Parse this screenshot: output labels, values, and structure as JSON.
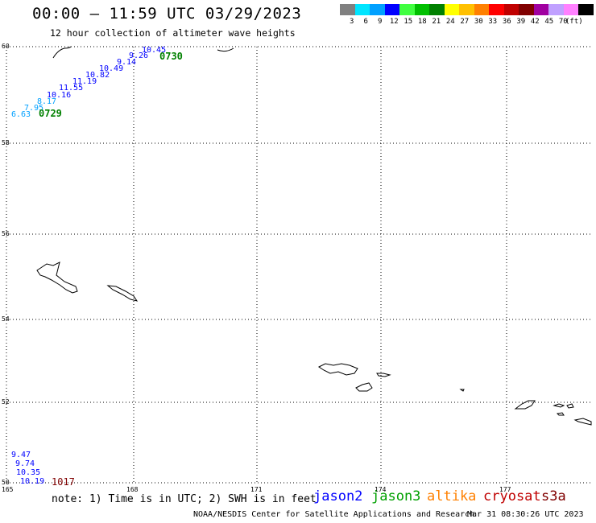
{
  "header": {
    "title": "00:00 – 11:59 UTC 03/29/2023",
    "subtitle": "12 hour collection of altimeter wave heights"
  },
  "legend": {
    "colors": [
      "#808080",
      "#00e5ff",
      "#00a0ff",
      "#0000ff",
      "#40ff40",
      "#00c000",
      "#008000",
      "#ffff00",
      "#ffc000",
      "#ff8000",
      "#ff0000",
      "#c00000",
      "#800000",
      "#a000a0",
      "#c0a0ff",
      "#ff80ff",
      "#000000"
    ],
    "labels": [
      "3",
      "6",
      "9",
      "12",
      "15",
      "18",
      "21",
      "24",
      "27",
      "30",
      "33",
      "36",
      "39",
      "42",
      "45",
      "70"
    ],
    "unit": "(ft)"
  },
  "axes": {
    "lon_labels": [
      "165",
      "168",
      "171",
      "174",
      "177"
    ],
    "lat_labels": [
      "60",
      "58",
      "56",
      "54",
      "52",
      "50"
    ]
  },
  "tracks": [
    {
      "satellite": "jason3",
      "time_label": "0729",
      "time_color": "#008000",
      "readings": [
        {
          "value": "6.63",
          "color": "#00a0ff"
        },
        {
          "value": "7.95",
          "color": "#00a0ff"
        },
        {
          "value": "8.17",
          "color": "#00a0ff"
        },
        {
          "value": "10.16",
          "color": "#0000ff"
        },
        {
          "value": "11.55",
          "color": "#0000ff"
        },
        {
          "value": "11.19",
          "color": "#0000ff"
        },
        {
          "value": "10.82",
          "color": "#0000ff"
        },
        {
          "value": "10.49",
          "color": "#0000ff"
        },
        {
          "value": "9.14",
          "color": "#0000ff"
        },
        {
          "value": "9.26",
          "color": "#0000ff"
        },
        {
          "value": "10.45",
          "color": "#0000ff"
        }
      ],
      "end_time_label": "0730"
    },
    {
      "satellite": "cryosat",
      "time_label": "1017",
      "time_color": "#800000",
      "readings": [
        {
          "value": "9.47",
          "color": "#0000ff"
        },
        {
          "value": "9.74",
          "color": "#0000ff"
        },
        {
          "value": "10.35",
          "color": "#0000ff"
        },
        {
          "value": "10.19",
          "color": "#0000ff"
        }
      ]
    }
  ],
  "notes": {
    "text": "note: 1) Time is in UTC; 2) SWH is in feet",
    "satellites": [
      {
        "name": "jason2",
        "color": "#0000ff"
      },
      {
        "name": "jason3",
        "color": "#00a000"
      },
      {
        "name": "altika",
        "color": "#ff8000"
      },
      {
        "name": "cryosat",
        "color": "#c00000"
      },
      {
        "name": "s3a",
        "color": "#800000"
      }
    ]
  },
  "footer": {
    "left": "NOAA/NESDIS Center for Satellite Applications and Research",
    "right": "Mar 31 08:30:26 UTC 2023"
  }
}
